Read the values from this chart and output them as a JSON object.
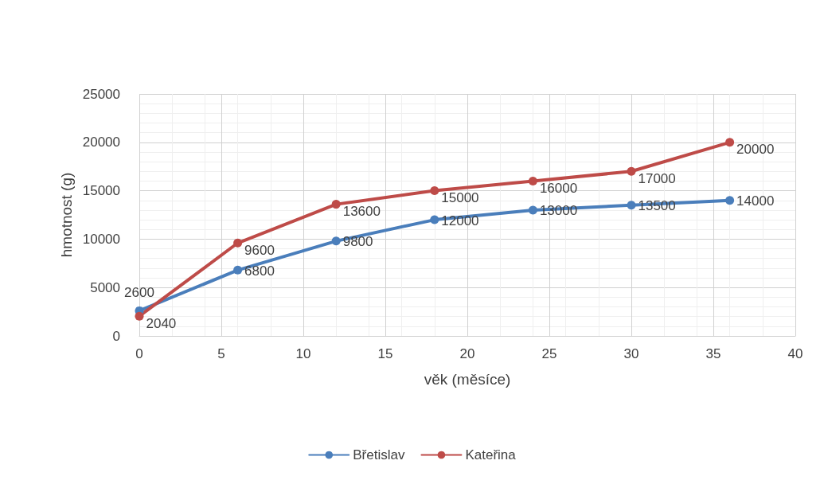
{
  "chart_data": {
    "type": "line",
    "xlabel": "věk (měsíce)",
    "ylabel": "hmotnost (g)",
    "x": [
      0,
      6,
      12,
      18,
      24,
      30,
      36
    ],
    "series": [
      {
        "name": "Břetislav",
        "color": "#4a7ebb",
        "values": [
          2600,
          6800,
          9800,
          12000,
          13000,
          13500,
          14000
        ]
      },
      {
        "name": "Kateřina",
        "color": "#be4b48",
        "values": [
          2040,
          9600,
          13600,
          15000,
          16000,
          17000,
          20000
        ]
      }
    ],
    "xlim": [
      0,
      40
    ],
    "xticks": [
      0,
      5,
      10,
      15,
      20,
      25,
      30,
      35,
      40
    ],
    "ylim": [
      0,
      25000
    ],
    "yticks": [
      0,
      5000,
      10000,
      15000,
      20000,
      25000
    ],
    "grid": true,
    "legend": "bottom",
    "marker": "circle",
    "line_style": "solid",
    "data_labels": true
  }
}
